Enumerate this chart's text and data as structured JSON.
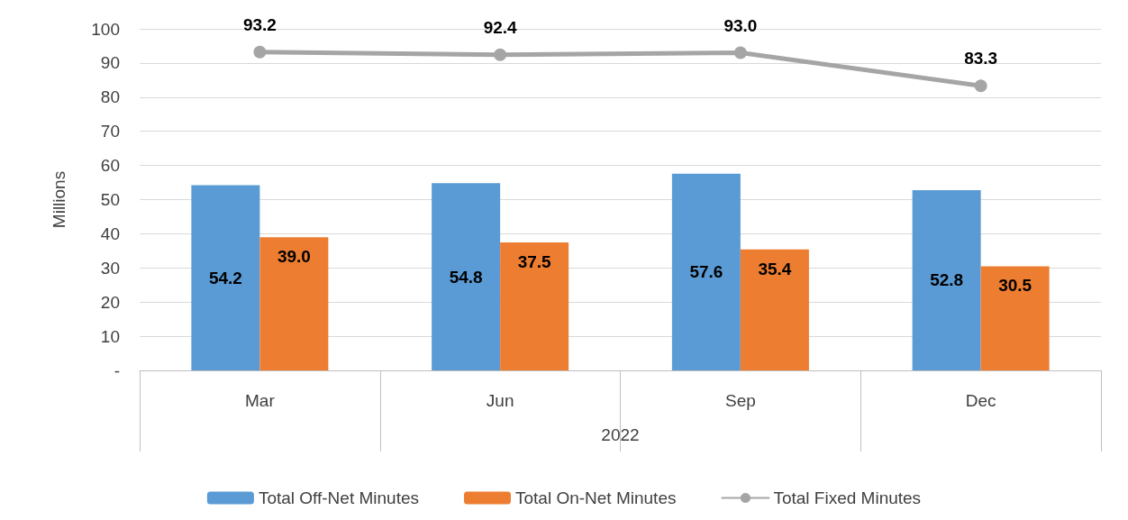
{
  "chart_data": {
    "type": "bar",
    "categories": [
      "Mar",
      "Jun",
      "Sep",
      "Dec"
    ],
    "xlabel": "2022",
    "ylabel": "Millions",
    "series": [
      {
        "name": "Total Off-Net Minutes",
        "color": "#5b9bd5",
        "values": [
          54.2,
          54.8,
          57.6,
          52.8
        ],
        "value_labels": [
          "54.2",
          "54.8",
          "57.6",
          "52.8"
        ]
      },
      {
        "name": "Total On-Net Minutes",
        "color": "#ed7d31",
        "values": [
          39.0,
          37.5,
          35.4,
          30.5
        ],
        "value_labels": [
          "39.0",
          "37.5",
          "35.4",
          "30.5"
        ]
      },
      {
        "name": "Total Fixed Minutes",
        "type": "line",
        "color": "#a5a5a5",
        "values": [
          93.2,
          92.4,
          93.0,
          83.3
        ],
        "value_labels": [
          "93.2",
          "92.4",
          "93.0",
          "83.3"
        ]
      }
    ],
    "ylim": [
      0,
      100
    ],
    "yticks": [
      {
        "value": 0,
        "label": "-"
      },
      10,
      20,
      30,
      40,
      50,
      60,
      70,
      80,
      90,
      100
    ],
    "grid": "y",
    "legend": "bottom",
    "marker": "circle",
    "line_style": "solid"
  }
}
